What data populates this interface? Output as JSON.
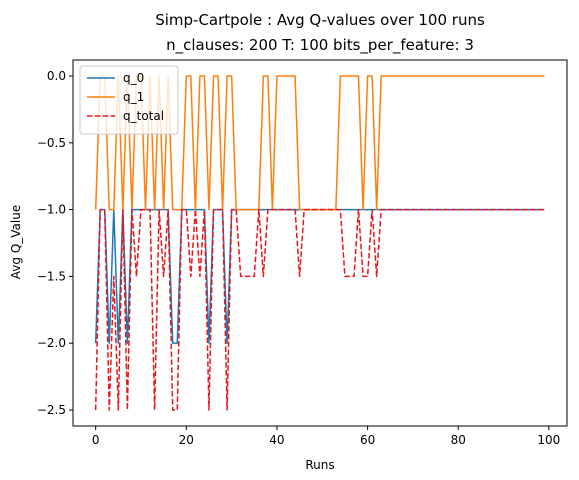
{
  "chart_data": {
    "type": "line",
    "title": "Simp-Cartpole : Avg Q-values over 100 runs",
    "subtitle": "n_clauses: 200 T: 100 bits_per_feature: 3",
    "xlabel": "Runs",
    "ylabel": "Avg Q_Value",
    "xlim": [
      -5,
      104
    ],
    "ylim": [
      -2.62,
      0.12
    ],
    "xticks": [
      0,
      20,
      40,
      60,
      80,
      100
    ],
    "yticks": [
      0.0,
      -0.5,
      -1.0,
      -1.5,
      -2.0,
      -2.5
    ],
    "xtick_labels": [
      "0",
      "20",
      "40",
      "60",
      "80",
      "100"
    ],
    "ytick_labels": [
      "0.0",
      "−0.5",
      "−1.0",
      "−1.5",
      "−2.0",
      "−2.5"
    ],
    "legend_position": "upper-left",
    "x": [
      0,
      1,
      2,
      3,
      4,
      5,
      6,
      7,
      8,
      9,
      10,
      11,
      12,
      13,
      14,
      15,
      16,
      17,
      18,
      19,
      20,
      21,
      22,
      23,
      24,
      25,
      26,
      27,
      28,
      29,
      30,
      31,
      32,
      33,
      34,
      35,
      36,
      37,
      38,
      39,
      40,
      41,
      42,
      43,
      44,
      45,
      46,
      47,
      48,
      49,
      50,
      51,
      52,
      53,
      54,
      55,
      56,
      57,
      58,
      59,
      60,
      61,
      62,
      63,
      64,
      65,
      66,
      67,
      68,
      69,
      70,
      71,
      72,
      73,
      74,
      75,
      76,
      77,
      78,
      79,
      80,
      81,
      82,
      83,
      84,
      85,
      86,
      87,
      88,
      89,
      90,
      91,
      92,
      93,
      94,
      95,
      96,
      97,
      98,
      99
    ],
    "series": [
      {
        "name": "q_0",
        "color": "#1f77b4",
        "dash": "solid",
        "values": [
          -2,
          -1,
          -1,
          -2,
          -1,
          -2,
          -1,
          -2,
          -1,
          -1,
          -1,
          -1,
          -1,
          -1,
          -1,
          -1,
          -1,
          -2,
          -2,
          -1,
          -1,
          -1,
          -1,
          -1,
          -1,
          -2,
          -1,
          -1,
          -1,
          -2,
          -1,
          -1,
          -1,
          -1,
          -1,
          -1,
          -1,
          -1,
          -1,
          -1,
          -1,
          -1,
          -1,
          -1,
          -1,
          -1,
          -1,
          -1,
          -1,
          -1,
          -1,
          -1,
          -1,
          -1,
          -1,
          -1,
          -1,
          -1,
          -1,
          -1,
          -1,
          -1,
          -1,
          -1,
          -1,
          -1,
          -1,
          -1,
          -1,
          -1,
          -1,
          -1,
          -1,
          -1,
          -1,
          -1,
          -1,
          -1,
          -1,
          -1,
          -1,
          -1,
          -1,
          -1,
          -1,
          -1,
          -1,
          -1,
          -1,
          -1,
          -1,
          -1,
          -1,
          -1,
          -1,
          -1,
          -1,
          -1,
          -1,
          -1
        ]
      },
      {
        "name": "q_1",
        "color": "#ff7f0e",
        "dash": "solid",
        "values": [
          -1,
          0,
          0,
          -1,
          -1,
          0,
          -1,
          0,
          -1,
          0,
          0,
          -1,
          0,
          -1,
          0,
          -1,
          0,
          -1,
          -1,
          -1,
          0,
          0,
          -1,
          0,
          0,
          -1,
          0,
          0,
          -1,
          0,
          0,
          -1,
          -1,
          -1,
          -1,
          -1,
          -1,
          0,
          0,
          -1,
          0,
          0,
          0,
          0,
          0,
          -1,
          -1,
          -1,
          -1,
          -1,
          -1,
          -1,
          -1,
          -1,
          0,
          0,
          0,
          0,
          0,
          -1,
          0,
          0,
          -1,
          0,
          0,
          0,
          0,
          0,
          0,
          0,
          0,
          0,
          0,
          0,
          0,
          0,
          0,
          0,
          0,
          0,
          0,
          0,
          0,
          0,
          0,
          0,
          0,
          0,
          0,
          0,
          0,
          0,
          0,
          0,
          0,
          0,
          0,
          0,
          0,
          0
        ]
      },
      {
        "name": "q_total",
        "color": "#e8161b",
        "dash": "dashed",
        "values": [
          -2.5,
          -1,
          -1,
          -2.5,
          -1.5,
          -2.5,
          -1,
          -2.5,
          -1,
          -1.5,
          -1,
          -1,
          -1,
          -2.5,
          -1,
          -1.5,
          -1,
          -2.5,
          -2.5,
          -1,
          -1,
          -1.5,
          -1,
          -1.5,
          -1,
          -2.5,
          -1,
          -1,
          -1,
          -2.5,
          -1,
          -1,
          -1.5,
          -1.5,
          -1.5,
          -1.5,
          -1,
          -1.5,
          -1,
          -1,
          -1,
          -1,
          -1,
          -1,
          -1,
          -1.5,
          -1,
          -1,
          -1,
          -1,
          -1,
          -1,
          -1,
          -1,
          -1,
          -1.5,
          -1.5,
          -1.5,
          -1,
          -1.5,
          -1.5,
          -1,
          -1.5,
          -1,
          -1,
          -1,
          -1,
          -1,
          -1,
          -1,
          -1,
          -1,
          -1,
          -1,
          -1,
          -1,
          -1,
          -1,
          -1,
          -1,
          -1,
          -1,
          -1,
          -1,
          -1,
          -1,
          -1,
          -1,
          -1,
          -1,
          -1,
          -1,
          -1,
          -1,
          -1,
          -1,
          -1,
          -1,
          -1,
          -1
        ]
      }
    ]
  }
}
